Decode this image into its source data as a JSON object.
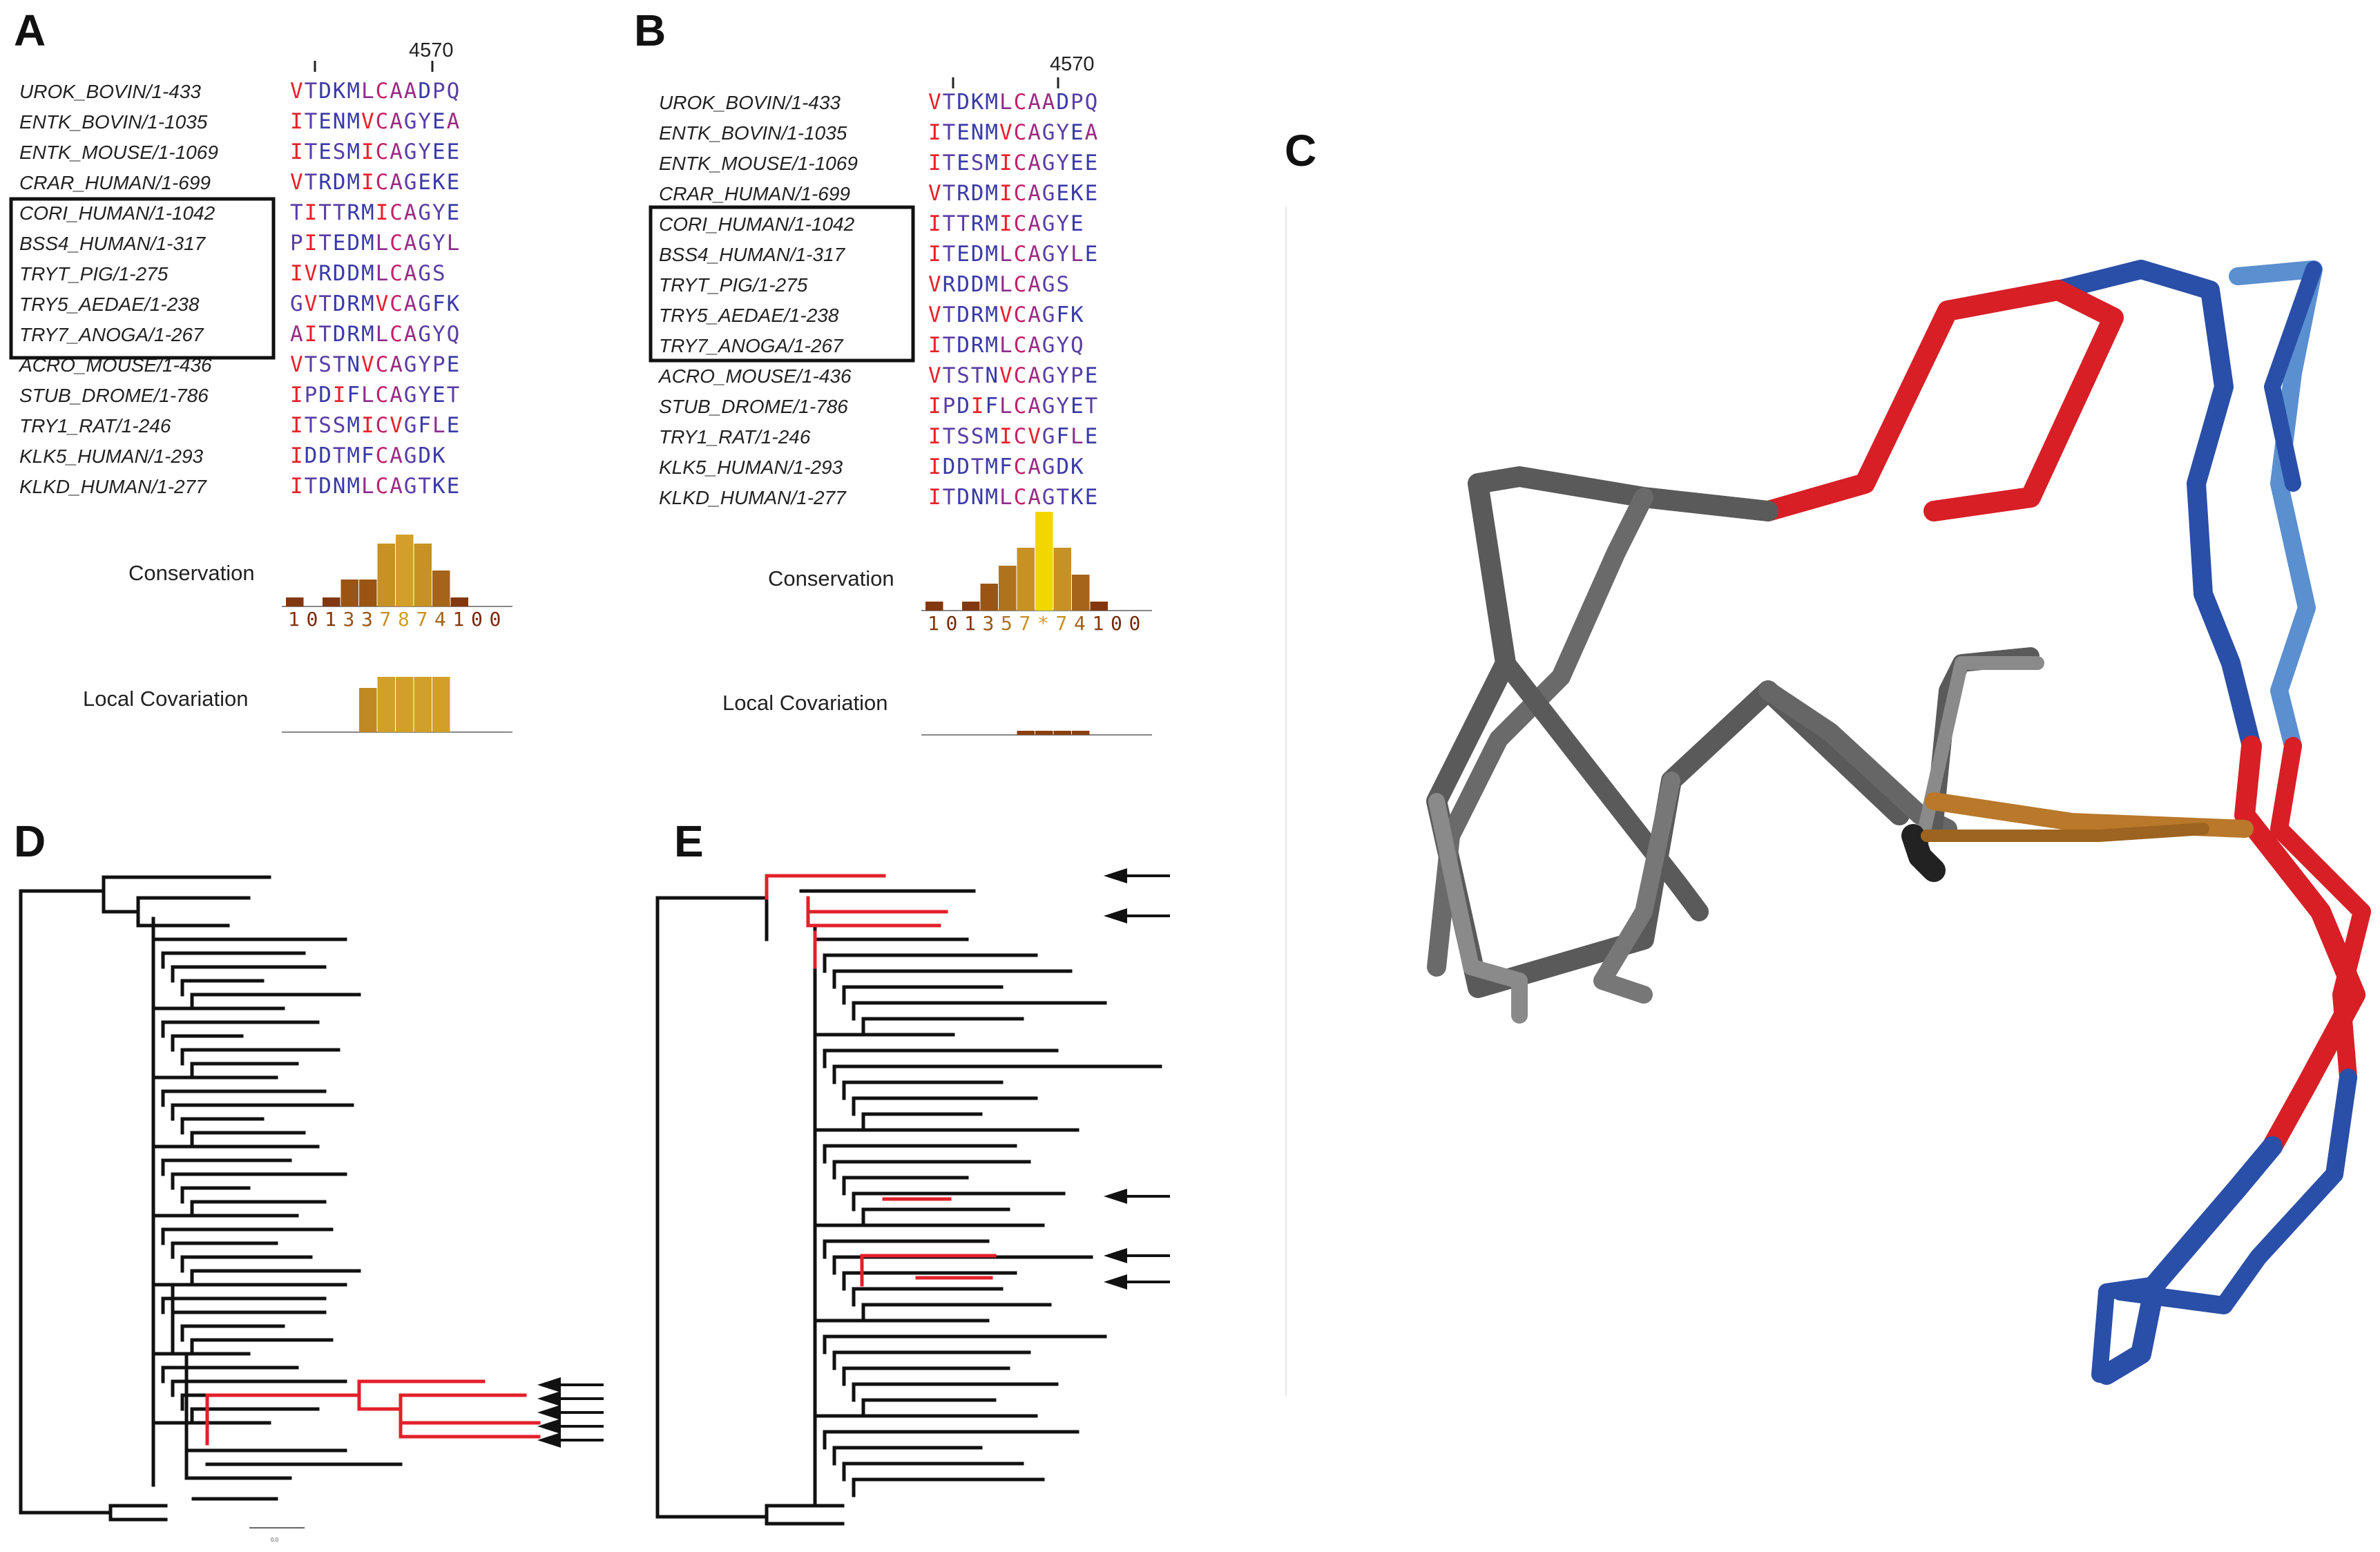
{
  "panels": {
    "A": "A",
    "B": "B",
    "C": "C",
    "D": "D",
    "E": "E"
  },
  "position_label": "4570",
  "conservation_label": "Conservation",
  "covariation_label": "Local Covariation",
  "scale_label": "0.0",
  "residue_colors": {
    "V": "#e8202a",
    "T": "#5a3fa6",
    "D": "#3a3aa8",
    "K": "#3a3aa8",
    "M": "#3a3aa8",
    "L": "#8e2e8f",
    "C": "#c4206c",
    "A": "#9a2c84",
    "P": "#5a3fa6",
    "Q": "#5a3fa6",
    "I": "#e8202a",
    "E": "#3a3aa8",
    "N": "#3a3aa8",
    "G": "#5a3fa6",
    "Y": "#5a3fa6",
    "S": "#5a3fa6",
    "R": "#3a3aa8",
    "F": "#3a3aa8"
  },
  "alignment_A": {
    "rows": [
      {
        "name": "UROK_BOVIN/1-433",
        "seq": "VTDKMLCAADPQ"
      },
      {
        "name": "ENTK_BOVIN/1-1035",
        "seq": "ITENMVCAGYEA"
      },
      {
        "name": "ENTK_MOUSE/1-1069",
        "seq": "ITESMICAGYEE"
      },
      {
        "name": "CRAR_HUMAN/1-699",
        "seq": "VTRDMICAGEKE"
      },
      {
        "name": "CORI_HUMAN/1-1042",
        "seq": "TITTRMICAGYE"
      },
      {
        "name": "BSS4_HUMAN/1-317",
        "seq": "PITEDMLCAGYL"
      },
      {
        "name": "TRYT_PIG/1-275",
        "seq": "IVRDDMLCAGS"
      },
      {
        "name": "TRY5_AEDAE/1-238",
        "seq": "GVTDRMVCAGFK"
      },
      {
        "name": "TRY7_ANOGA/1-267",
        "seq": "AITDRMLCAGYQ"
      },
      {
        "name": "ACRO_MOUSE/1-436",
        "seq": "VTSTNVCAGYPE"
      },
      {
        "name": "STUB_DROME/1-786",
        "seq": "IPDIFLCAGYET"
      },
      {
        "name": "TRY1_RAT/1-246",
        "seq": "ITSSMICVGFLE"
      },
      {
        "name": "KLK5_HUMAN/1-293",
        "seq": "IDDTMFCAGDK"
      },
      {
        "name": "KLKD_HUMAN/1-277",
        "seq": "ITDNMLCAGTKE"
      }
    ],
    "conservation_digits": [
      "1",
      "0",
      "1",
      "3",
      "3",
      "7",
      "8",
      "7",
      "4",
      "1",
      "0",
      "0"
    ],
    "conservation_values": [
      1,
      0,
      1,
      3,
      3,
      7,
      8,
      7,
      4,
      1,
      0,
      0
    ],
    "covariation_values": [
      0,
      0,
      0,
      0,
      4,
      5,
      5,
      5,
      5,
      0,
      0,
      0
    ]
  },
  "alignment_B": {
    "rows": [
      {
        "name": "UROK_BOVIN/1-433",
        "seq": "VTDKMLCAADPQ"
      },
      {
        "name": "ENTK_BOVIN/1-1035",
        "seq": "ITENMVCAGYEA"
      },
      {
        "name": "ENTK_MOUSE/1-1069",
        "seq": "ITESMICAGYEE"
      },
      {
        "name": "CRAR_HUMAN/1-699",
        "seq": "VTRDMICAGEKE"
      },
      {
        "name": "CORI_HUMAN/1-1042",
        "seq": "ITTRMICAGYE"
      },
      {
        "name": "BSS4_HUMAN/1-317",
        "seq": "ITEDMLCAGYLE"
      },
      {
        "name": "TRYT_PIG/1-275",
        "seq": "VRDDMLCAGS"
      },
      {
        "name": "TRY5_AEDAE/1-238",
        "seq": "VTDRMVCAGFK"
      },
      {
        "name": "TRY7_ANOGA/1-267",
        "seq": "ITDRMLCAGYQ"
      },
      {
        "name": "ACRO_MOUSE/1-436",
        "seq": "VTSTNVCAGYPE"
      },
      {
        "name": "STUB_DROME/1-786",
        "seq": "IPDIFLCAGYET"
      },
      {
        "name": "TRY1_RAT/1-246",
        "seq": "ITSSMICVGFLE"
      },
      {
        "name": "KLK5_HUMAN/1-293",
        "seq": "IDDTMFCAGDK"
      },
      {
        "name": "KLKD_HUMAN/1-277",
        "seq": "ITDNMLCAGTKE"
      }
    ],
    "conservation_digits": [
      "1",
      "0",
      "1",
      "3",
      "5",
      "7",
      "*",
      "7",
      "4",
      "1",
      "0",
      "0"
    ],
    "conservation_values": [
      1,
      0,
      1,
      3,
      5,
      7,
      11,
      7,
      4,
      1,
      0,
      0
    ],
    "covariation_values": [
      0,
      0,
      0,
      0,
      0,
      1,
      1,
      1,
      1,
      0,
      0,
      0
    ]
  },
  "colors": {
    "highlight_red": "#e3202a",
    "tree_black": "#111111",
    "structure_gray": "#5a5a5a",
    "structure_light_gray": "#8a8a8a",
    "structure_red": "#d81f26",
    "structure_blue": "#2a4fa8",
    "structure_light_blue": "#5a8fd0",
    "structure_orange": "#b9782a",
    "conservation_max": "#f2d600"
  }
}
